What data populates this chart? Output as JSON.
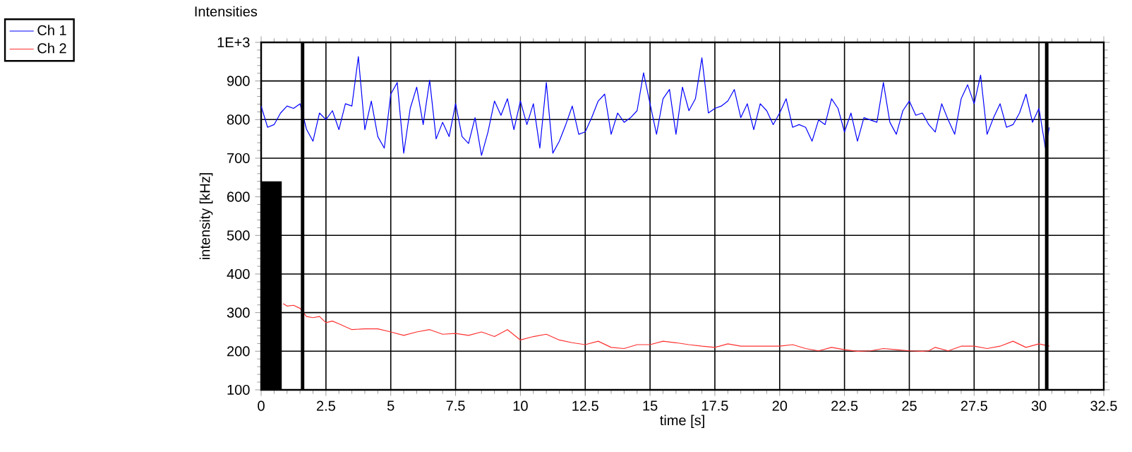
{
  "chart_data": {
    "type": "line",
    "title": "Intensities",
    "xlabel": "time [s]",
    "ylabel": "intensity [kHz]",
    "xlim": [
      0,
      32.5
    ],
    "xticks": [
      0,
      2.5,
      5,
      7.5,
      10,
      12.5,
      15,
      17.5,
      20,
      22.5,
      25,
      27.5,
      30,
      32.5
    ],
    "ylim": [
      100,
      1000
    ],
    "yticks": [
      100,
      200,
      300,
      400,
      500,
      600,
      700,
      800,
      900,
      {
        "value": 1000,
        "label": "1E+3"
      }
    ],
    "grid": true,
    "legend": "top left",
    "ref_lines": [
      {
        "axis": "x",
        "value": 1.6,
        "color": "#000000"
      },
      {
        "axis": "x",
        "value": 30.3,
        "color": "#000000"
      }
    ],
    "series": [
      {
        "type": "area",
        "color": "#000000",
        "x": [
          0,
          0.8
        ],
        "values": [
          640,
          640
        ]
      },
      {
        "name": "Ch 1",
        "color": "#0000ff",
        "x": [
          0,
          0.25,
          0.5,
          0.75,
          1,
          1.25,
          1.5,
          1.75,
          2,
          2.25,
          2.5,
          2.75,
          3,
          3.25,
          3.5,
          3.75,
          4,
          4.25,
          4.5,
          4.75,
          5,
          5.25,
          5.5,
          5.75,
          6,
          6.25,
          6.5,
          6.75,
          7,
          7.25,
          7.5,
          7.75,
          8,
          8.25,
          8.5,
          8.75,
          9,
          9.25,
          9.5,
          9.75,
          10,
          10.25,
          10.5,
          10.75,
          11,
          11.25,
          11.5,
          11.75,
          12,
          12.25,
          12.5,
          12.75,
          13,
          13.25,
          13.5,
          13.75,
          14,
          14.25,
          14.5,
          14.75,
          15,
          15.25,
          15.5,
          15.75,
          16,
          16.25,
          16.5,
          16.75,
          17,
          17.25,
          17.5,
          17.75,
          18,
          18.25,
          18.5,
          18.75,
          19,
          19.25,
          19.5,
          19.75,
          20,
          20.25,
          20.5,
          20.75,
          21,
          21.25,
          21.5,
          21.75,
          22,
          22.25,
          22.5,
          22.75,
          23,
          23.25,
          23.5,
          23.75,
          24,
          24.25,
          24.5,
          24.75,
          25,
          25.25,
          25.5,
          25.75,
          26,
          26.25,
          26.5,
          26.75,
          27,
          27.25,
          27.5,
          27.75,
          28,
          28.25,
          28.5,
          28.75,
          29,
          29.25,
          29.5,
          29.75,
          30,
          30.25,
          30.4
        ],
        "values": [
          835,
          780,
          787,
          817,
          835,
          829,
          841,
          775,
          744,
          817,
          800,
          823,
          774,
          841,
          835,
          963,
          774,
          848,
          756,
          726,
          866,
          896,
          713,
          829,
          884,
          787,
          902,
          750,
          793,
          756,
          841,
          756,
          738,
          805,
          707,
          768,
          848,
          811,
          854,
          774,
          848,
          787,
          841,
          726,
          896,
          713,
          744,
          787,
          835,
          762,
          768,
          805,
          848,
          866,
          762,
          817,
          793,
          805,
          823,
          921,
          841,
          762,
          854,
          878,
          762,
          884,
          823,
          854,
          960,
          817,
          829,
          835,
          848,
          878,
          805,
          841,
          774,
          841,
          823,
          787,
          817,
          854,
          780,
          787,
          780,
          744,
          799,
          787,
          854,
          829,
          768,
          817,
          744,
          805,
          799,
          793,
          896,
          793,
          762,
          823,
          848,
          811,
          817,
          787,
          768,
          841,
          799,
          762,
          854,
          890,
          841,
          915,
          762,
          805,
          841,
          780,
          787,
          817,
          866,
          793,
          829,
          726,
          780
        ]
      },
      {
        "name": "Ch 2",
        "color": "#ff3030",
        "x": [
          0.85,
          1,
          1.25,
          1.5,
          1.75,
          2,
          2.25,
          2.5,
          2.75,
          3,
          3.5,
          4,
          4.5,
          5,
          5.5,
          6,
          6.5,
          7,
          7.5,
          8,
          8.5,
          9,
          9.5,
          10,
          10.5,
          11,
          11.5,
          12,
          12.5,
          13,
          13.5,
          14,
          14.5,
          15,
          15.5,
          16,
          16.5,
          17,
          17.5,
          18,
          18.5,
          19,
          19.5,
          20,
          20.5,
          21,
          21.5,
          22,
          22.5,
          23,
          23.5,
          24,
          24.5,
          25,
          25.5,
          25.75,
          26,
          26.5,
          27,
          27.5,
          28,
          28.5,
          29,
          29.5,
          30,
          30.4
        ],
        "values": [
          323,
          317,
          319,
          311,
          290,
          287,
          290,
          274,
          278,
          271,
          256,
          258,
          258,
          250,
          241,
          250,
          256,
          244,
          246,
          241,
          250,
          238,
          256,
          229,
          238,
          244,
          229,
          222,
          217,
          226,
          210,
          207,
          217,
          217,
          226,
          222,
          217,
          213,
          210,
          219,
          213,
          213,
          213,
          213,
          217,
          207,
          201,
          210,
          204,
          200,
          201,
          207,
          204,
          201,
          200,
          201,
          210,
          201,
          213,
          213,
          207,
          213,
          226,
          210,
          219,
          213
        ]
      }
    ]
  }
}
